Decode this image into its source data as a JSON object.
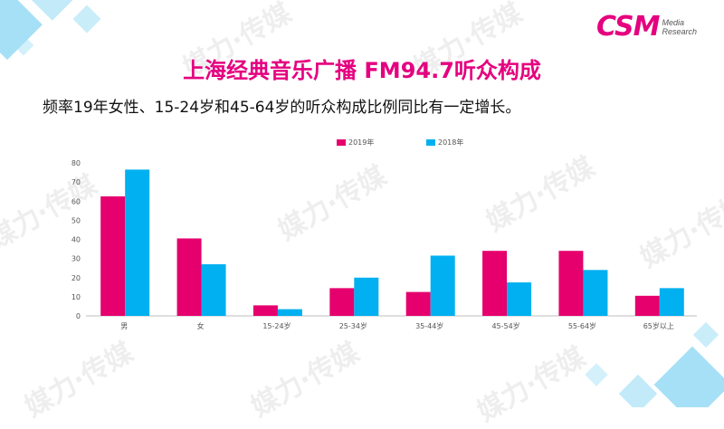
{
  "title": "上海经典音乐广播 FM94.7听众构成",
  "subtitle": "频率19年女性、15-24岁和45-64岁的听众构成比例同比有一定增长。",
  "logo": {
    "main": "CSM",
    "line1": "Media",
    "line2": "Research"
  },
  "watermark_text": "媒力·传媒",
  "colors": {
    "accent": "#e5007f",
    "series_2019": "#e5006e",
    "series_2018": "#00b0f0",
    "deco_blue": "#5fc8f0"
  },
  "chart_data": {
    "type": "bar",
    "categories": [
      "男",
      "女",
      "15-24岁",
      "25-34岁",
      "35-44岁",
      "45-54岁",
      "55-64岁",
      "65岁以上"
    ],
    "series": [
      {
        "name": "2019年",
        "values": [
          62.5,
          40.5,
          5.5,
          14.5,
          12.5,
          34,
          34,
          10.5
        ]
      },
      {
        "name": "2018年",
        "values": [
          76.5,
          27,
          3.5,
          20,
          31.5,
          17.5,
          24,
          14.5
        ]
      }
    ],
    "yticks": [
      0,
      10,
      20,
      30,
      40,
      50,
      60,
      70,
      80
    ],
    "ylim": [
      0,
      80
    ],
    "legend_position": "top-center",
    "grid": false
  }
}
